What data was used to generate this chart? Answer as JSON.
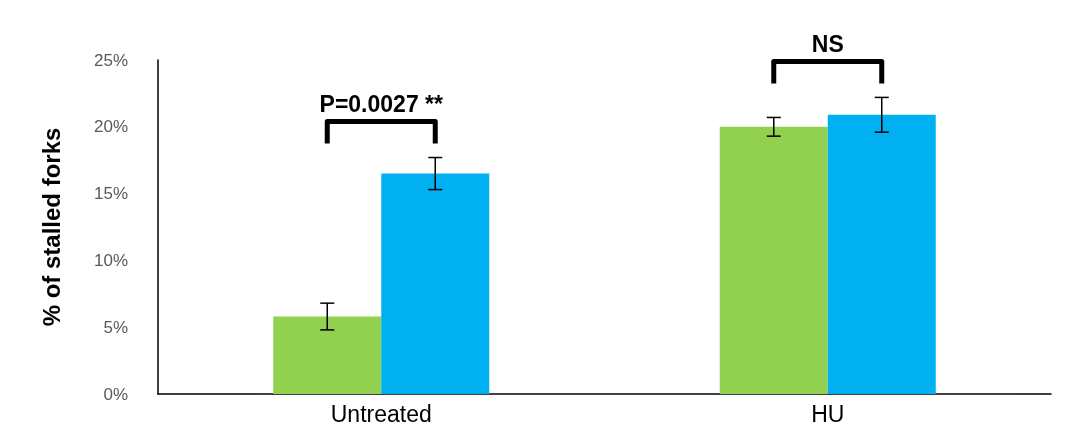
{
  "chart_data": {
    "type": "bar",
    "ylabel": "% of stalled forks",
    "categories": [
      "Untreated",
      "HU"
    ],
    "series": [
      {
        "color": "#92d050",
        "values": [
          5.8,
          20.0
        ],
        "errors": [
          1.0,
          0.7
        ]
      },
      {
        "color": "#00b0f0",
        "values": [
          16.5,
          20.9
        ],
        "errors": [
          1.2,
          1.3
        ]
      }
    ],
    "ylim": [
      0,
      25
    ],
    "yticks": [
      {
        "value": 0,
        "label": "0%"
      },
      {
        "value": 5,
        "label": "5%"
      },
      {
        "value": 10,
        "label": "10%"
      },
      {
        "value": 15,
        "label": "15%"
      },
      {
        "value": 20,
        "label": "20%"
      },
      {
        "value": 25,
        "label": "25%"
      }
    ],
    "grid": false,
    "annotations": [
      "P=0.0027 **",
      "NS"
    ]
  }
}
